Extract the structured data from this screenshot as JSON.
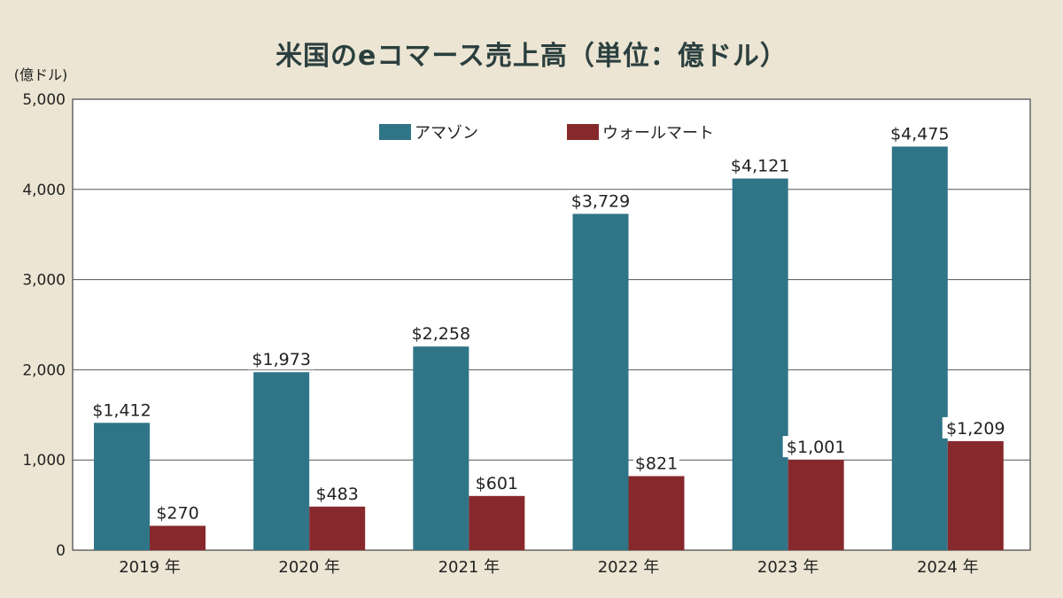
{
  "chart_data": {
    "type": "bar",
    "title": "米国のeコマース売上高（単位：億ドル）",
    "ylabel": "(億ドル)",
    "categories": [
      "2019 年",
      "2020 年",
      "2021 年",
      "2022 年",
      "2023 年",
      "2024 年"
    ],
    "ylim": [
      0,
      5000
    ],
    "yticks": [
      "0",
      "1,000",
      "2,000",
      "3,000",
      "4,000",
      "5,000"
    ],
    "ytick_values": [
      0,
      1000,
      2000,
      3000,
      4000,
      5000
    ],
    "grid": true,
    "legend_position": "top-center",
    "series": [
      {
        "name": "アマゾン",
        "color": "#2f7587",
        "values": [
          1412,
          1973,
          2258,
          3729,
          4121,
          4475
        ],
        "labels": [
          "$1,412",
          "$1,973",
          "$2,258",
          "$3,729",
          "$4,121",
          "$4,475"
        ]
      },
      {
        "name": "ウォールマート",
        "color": "#87292c",
        "values": [
          270,
          483,
          601,
          821,
          1001,
          1209
        ],
        "labels": [
          "$270",
          "$483",
          "$601",
          "$821",
          "$1,001",
          "$1,209"
        ]
      }
    ]
  }
}
